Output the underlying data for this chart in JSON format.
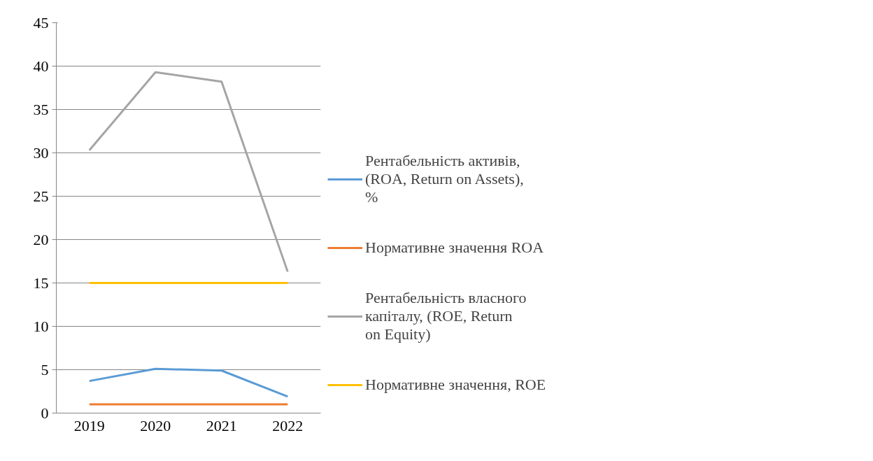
{
  "chart_data": {
    "type": "line",
    "categories": [
      "2019",
      "2020",
      "2021",
      "2022"
    ],
    "series": [
      {
        "name": "Рентабельність активів, (ROA, Return on Assets), %",
        "color": "#5b9bd5",
        "values": [
          3.7,
          5.1,
          4.9,
          1.9
        ]
      },
      {
        "name": "Нормативне значення ROA",
        "color": "#ed7d31",
        "values": [
          1,
          1,
          1,
          1
        ]
      },
      {
        "name": "Рентабельність власного капіталу, (ROE, Return on Equity)",
        "color": "#a5a5a5",
        "values": [
          30.3,
          39.3,
          38.2,
          16.3
        ]
      },
      {
        "name": "Нормативне значення, ROE",
        "color": "#ffc000",
        "values": [
          15,
          15,
          15,
          15
        ]
      }
    ],
    "ylim": [
      0,
      45
    ],
    "yticks": [
      0,
      5,
      10,
      15,
      20,
      25,
      30,
      35,
      40,
      45
    ],
    "grid": "y",
    "legend": "right",
    "marker": "none",
    "line_style": "solid"
  }
}
